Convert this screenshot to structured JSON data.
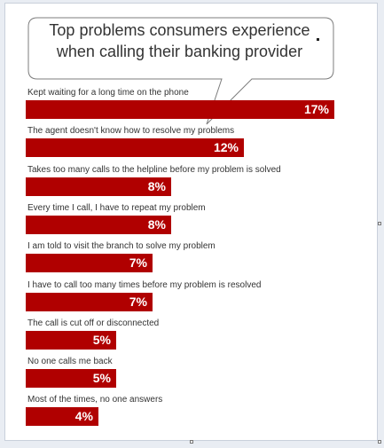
{
  "chart_data": {
    "type": "bar",
    "title_lines": [
      "Top problems consumers experience",
      "when calling their banking provider"
    ],
    "categories": [
      "Kept waiting for a long time on the phone",
      "The agent doesn't know how to resolve my problems",
      "Takes too many calls to the helpline before my problem is solved",
      "Every time I call, I have to repeat my problem",
      "I am told to visit the branch to solve my problem",
      "I have to call too many times before my problem is resolved",
      "The call is cut off or disconnected",
      "No one calls me back",
      "Most of the times, no one answers"
    ],
    "values": [
      17,
      12,
      8,
      8,
      7,
      7,
      5,
      5,
      4
    ],
    "value_labels": [
      "17%",
      "12%",
      "8%",
      "8%",
      "7%",
      "7%",
      "5%",
      "5%",
      "4%"
    ],
    "unit": "%",
    "bar_color": "#b00000",
    "orientation": "horizontal",
    "xlim": [
      0,
      17
    ]
  }
}
